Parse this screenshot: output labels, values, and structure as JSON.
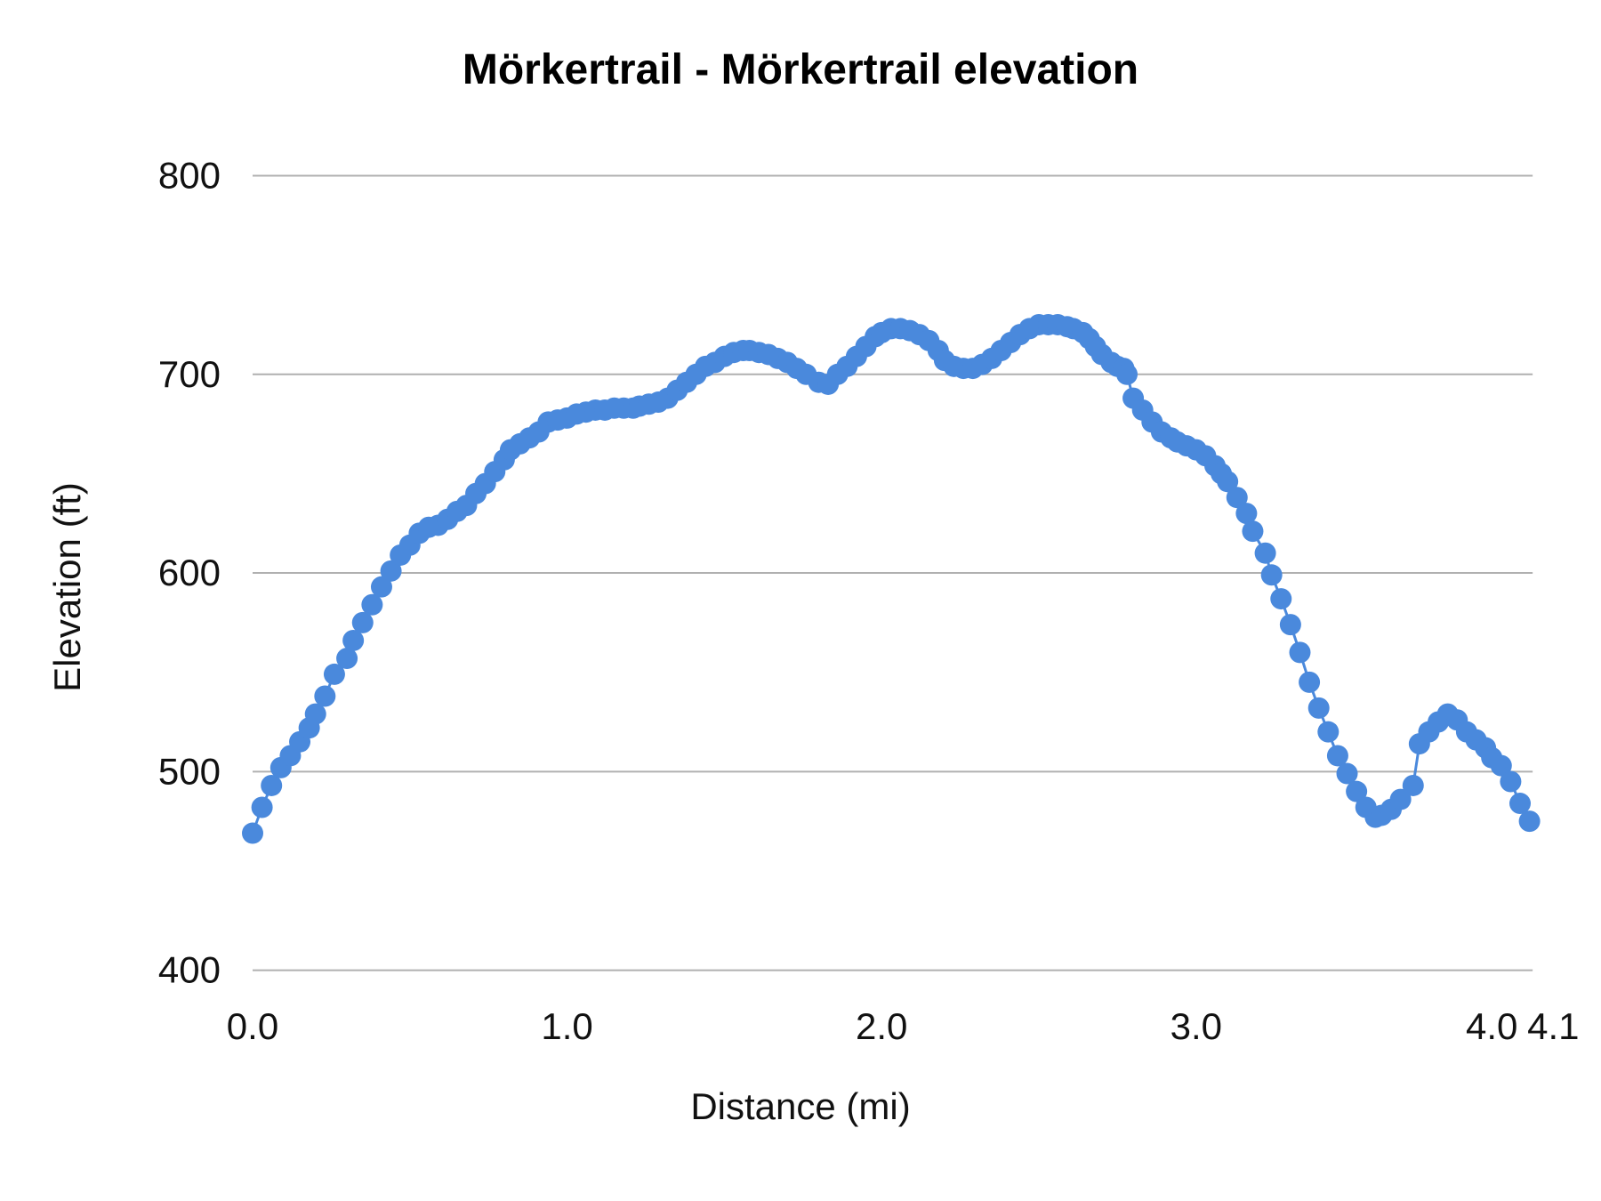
{
  "chart_data": {
    "type": "line",
    "title": "Mörkertrail - Mörkertrail elevation",
    "xlabel": "Distance (mi)",
    "ylabel": "Elevation (ft)",
    "xlim": [
      0,
      4.07
    ],
    "ylim": [
      400,
      800
    ],
    "grid": true,
    "color": "#4a89dc",
    "markers": true,
    "x_ticks": [
      {
        "value": 0,
        "label": "0.0"
      },
      {
        "value": 1,
        "label": "1.0"
      },
      {
        "value": 2,
        "label": "2.0"
      },
      {
        "value": 3,
        "label": "3.0"
      },
      {
        "value": 4,
        "label": "4.0"
      },
      {
        "value": 4.07,
        "label": "4.1"
      }
    ],
    "y_ticks": [
      {
        "value": 400,
        "label": "400"
      },
      {
        "value": 500,
        "label": "500"
      },
      {
        "value": 600,
        "label": "600"
      },
      {
        "value": 700,
        "label": "700"
      },
      {
        "value": 800,
        "label": "800"
      }
    ],
    "series": [
      {
        "x": [
          0,
          0.03,
          0.06,
          0.09,
          0.12,
          0.15,
          0.18,
          0.2,
          0.23,
          0.26,
          0.3,
          0.32,
          0.35,
          0.38,
          0.41,
          0.44,
          0.47,
          0.5,
          0.53,
          0.56,
          0.59,
          0.62,
          0.65,
          0.68,
          0.71,
          0.74,
          0.77,
          0.8,
          0.82,
          0.85,
          0.88,
          0.91,
          0.94,
          0.97,
          1.0,
          1.03,
          1.06,
          1.09,
          1.12,
          1.15,
          1.18,
          1.21,
          1.23,
          1.26,
          1.29,
          1.32,
          1.35,
          1.38,
          1.41,
          1.44,
          1.47,
          1.5,
          1.53,
          1.56,
          1.58,
          1.61,
          1.64,
          1.67,
          1.7,
          1.73,
          1.76,
          1.8,
          1.83,
          1.86,
          1.89,
          1.92,
          1.95,
          1.98,
          2.0,
          2.03,
          2.06,
          2.09,
          2.12,
          2.15,
          2.18,
          2.2,
          2.23,
          2.26,
          2.29,
          2.32,
          2.35,
          2.38,
          2.41,
          2.44,
          2.47,
          2.5,
          2.53,
          2.56,
          2.59,
          2.61,
          2.64,
          2.66,
          2.68,
          2.7,
          2.73,
          2.75,
          2.77,
          2.78,
          2.8,
          2.83,
          2.86,
          2.89,
          2.92,
          2.94,
          2.97,
          3.0,
          3.03,
          3.06,
          3.08,
          3.1,
          3.13,
          3.16,
          3.18,
          3.22,
          3.24,
          3.27,
          3.3,
          3.33,
          3.36,
          3.39,
          3.42,
          3.45,
          3.48,
          3.51,
          3.54,
          3.57,
          3.59,
          3.62,
          3.65,
          3.69,
          3.71,
          3.74,
          3.77,
          3.8,
          3.83,
          3.86,
          3.89,
          3.92,
          3.94,
          3.97,
          4.0,
          4.03,
          4.06
        ],
        "y": [
          469,
          482,
          493,
          502,
          508,
          515,
          522,
          529,
          538,
          549,
          557,
          566,
          575,
          584,
          593,
          601,
          609,
          614,
          620,
          623,
          624,
          627,
          631,
          634,
          640,
          645,
          651,
          657,
          662,
          665,
          668,
          671,
          676,
          677,
          678,
          680,
          681,
          682,
          682,
          683,
          683,
          683,
          684,
          685,
          686,
          688,
          692,
          696,
          700,
          704,
          706,
          709,
          711,
          712,
          712,
          711,
          710,
          708,
          706,
          703,
          700,
          696,
          695,
          700,
          704,
          709,
          714,
          719,
          721,
          723,
          723,
          722,
          720,
          717,
          712,
          707,
          704,
          703,
          703,
          705,
          708,
          712,
          716,
          720,
          723,
          725,
          725,
          725,
          724,
          723,
          721,
          718,
          714,
          710,
          706,
          704,
          703,
          700,
          688,
          682,
          676,
          671,
          668,
          666,
          664,
          662,
          659,
          654,
          650,
          646,
          638,
          630,
          621,
          610,
          599,
          587,
          574,
          560,
          545,
          532,
          520,
          508,
          499,
          490,
          482,
          477,
          478,
          481,
          486,
          493,
          514,
          520,
          525,
          529,
          526,
          520,
          516,
          512,
          507,
          503,
          495,
          484,
          475
        ]
      }
    ]
  }
}
